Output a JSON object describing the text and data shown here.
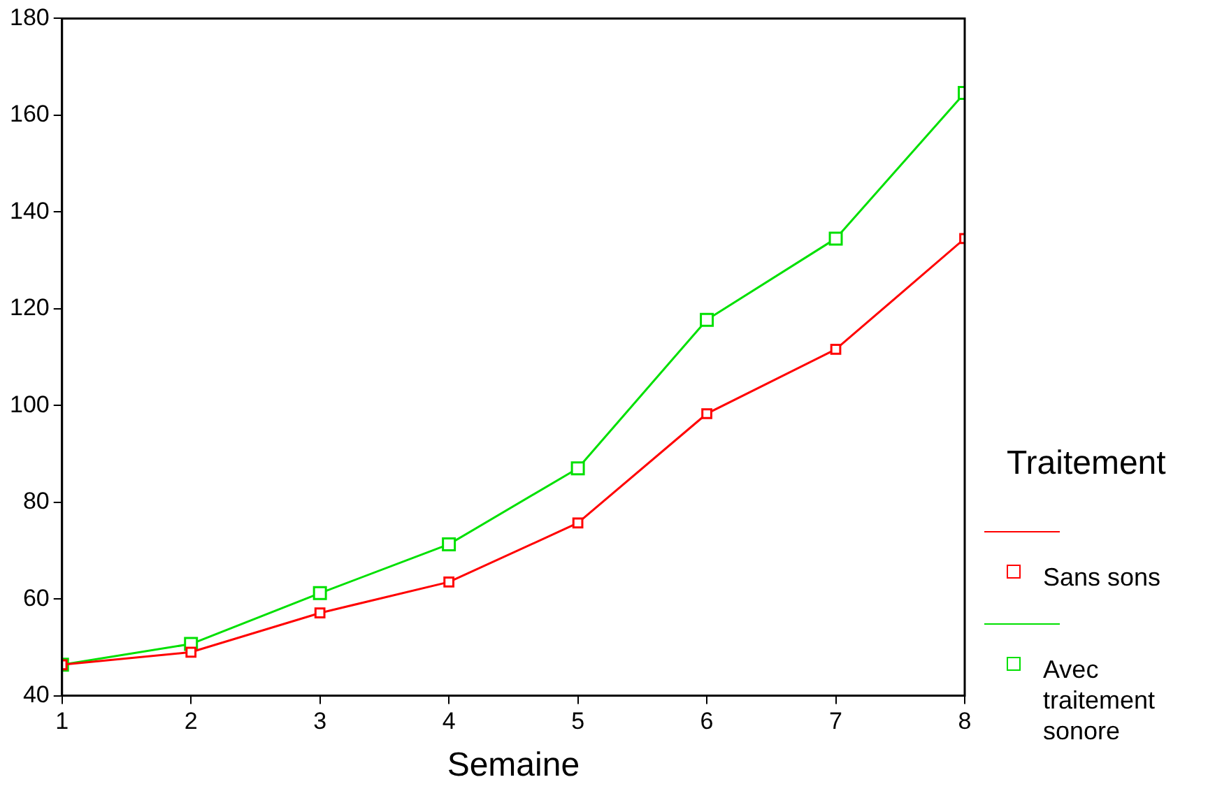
{
  "chart_data": {
    "type": "line",
    "xlabel": "Semaine",
    "legend_title": "Traitement",
    "legend": "right",
    "grid": false,
    "marker": "square",
    "line_style": "solid",
    "x": [
      1,
      2,
      3,
      4,
      5,
      6,
      7,
      8
    ],
    "xlim": [
      1,
      8
    ],
    "xticks": [
      1,
      2,
      3,
      4,
      5,
      6,
      7,
      8
    ],
    "ylim": [
      40,
      180
    ],
    "yticks": [
      40,
      60,
      80,
      100,
      120,
      140,
      160,
      180
    ],
    "series": [
      {
        "name": "Sans sons",
        "color": "#ff0000",
        "values": [
          46.4,
          49,
          57.1,
          63.5,
          75.7,
          98.3,
          111.6,
          134.5
        ]
      },
      {
        "name": "Avec traitement sonore",
        "color": "#00e000",
        "values": [
          46.4,
          50.7,
          61.2,
          71.3,
          87,
          117.7,
          134.5,
          164.6
        ]
      }
    ]
  }
}
